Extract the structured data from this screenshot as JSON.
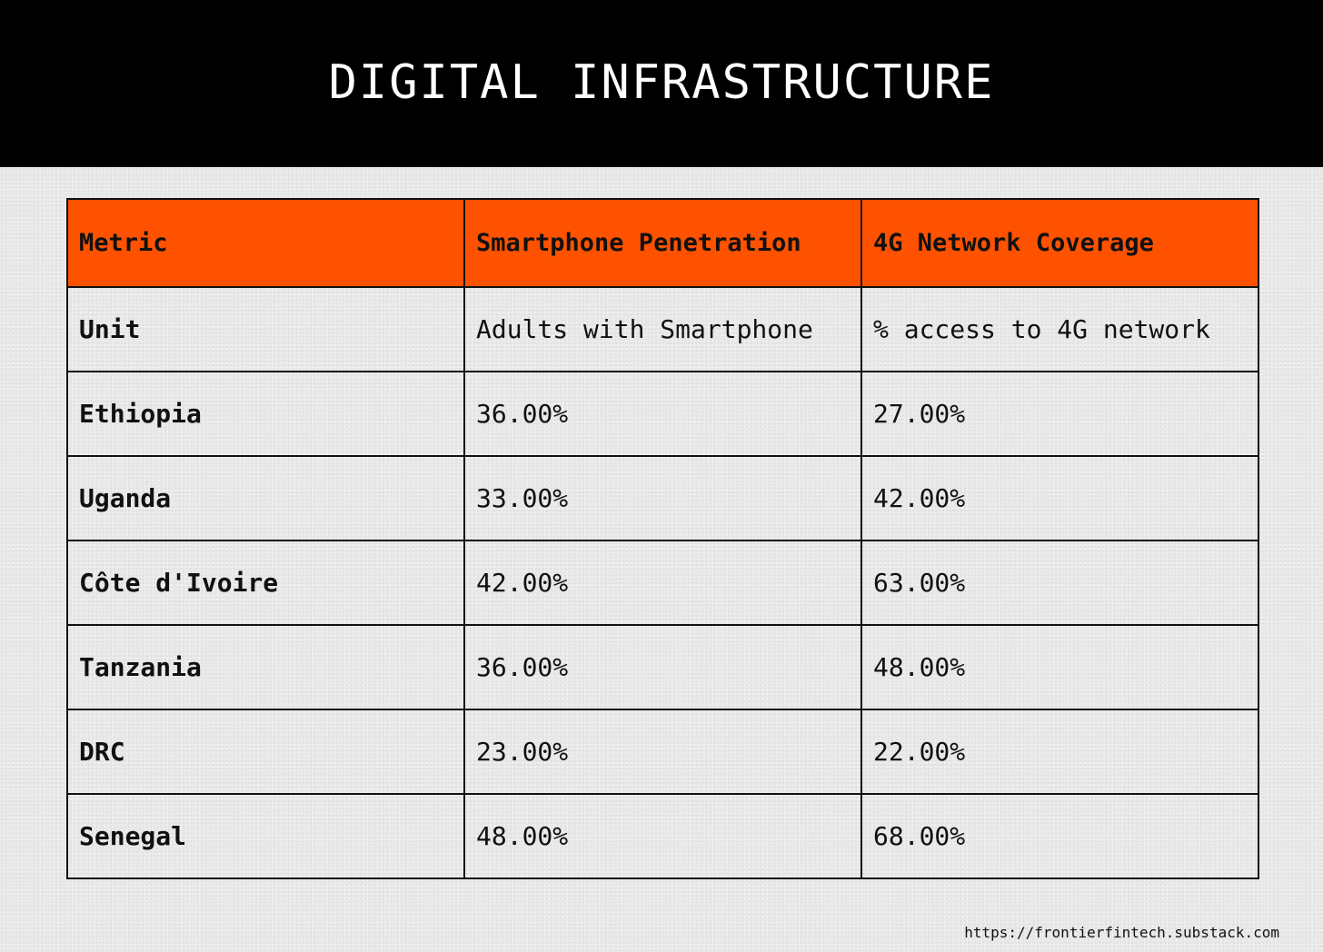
{
  "title": "DIGITAL INFRASTRUCTURE",
  "colors": {
    "header_background": "#000000",
    "title_text": "#ffffff",
    "table_header_background": "#ff5200",
    "page_background": "#e9e9e9",
    "grid_lines": "#111111"
  },
  "chart_data": {
    "type": "table",
    "columns": [
      "Metric",
      "Smartphone Penetration",
      "4G Network Coverage"
    ],
    "rows": [
      [
        "Unit",
        "Adults with Smartphone",
        "% access to 4G network"
      ],
      [
        "Ethiopia",
        "36.00%",
        "27.00%"
      ],
      [
        "Uganda",
        "33.00%",
        "42.00%"
      ],
      [
        "Côte d'Ivoire",
        "42.00%",
        "63.00%"
      ],
      [
        "Tanzania",
        "36.00%",
        "48.00%"
      ],
      [
        "DRC",
        "23.00%",
        "22.00%"
      ],
      [
        "Senegal",
        "48.00%",
        "68.00%"
      ]
    ]
  },
  "footer": {
    "source_url": "https://frontierfintech.substack.com"
  }
}
